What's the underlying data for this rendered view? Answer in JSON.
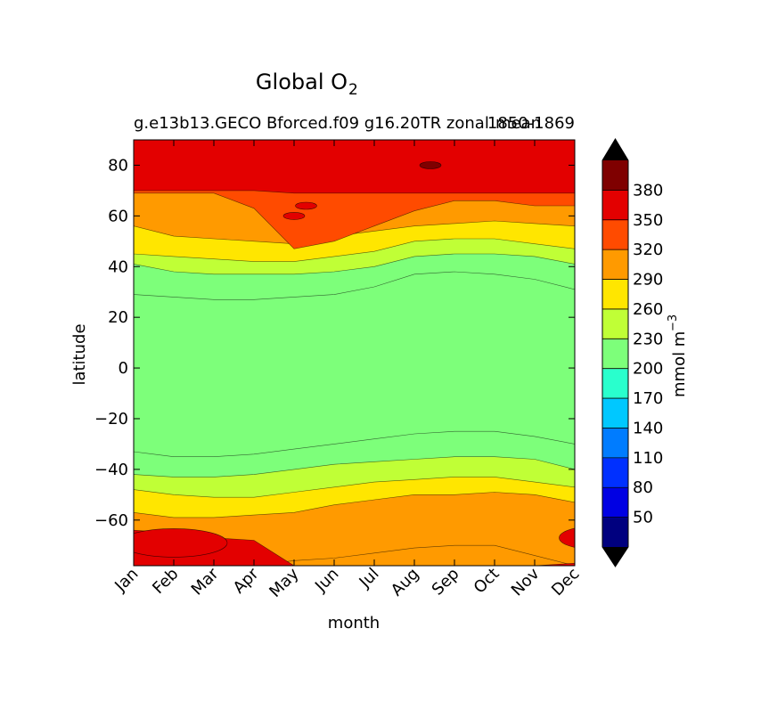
{
  "chart_data": {
    "type": "heatmap",
    "subtype": "filled-contour",
    "title": "Global O",
    "title_subscript": "2",
    "subtitle_left": "g.e13b13.GECO Bforced.f09 g16.20TR zonal",
    "subtitle_right": "1850-1869",
    "subtitle_overlap_text": "mean",
    "xlabel": "month",
    "ylabel": "latitude",
    "x_categories": [
      "Jan",
      "Feb",
      "Mar",
      "Apr",
      "May",
      "Jun",
      "Jul",
      "Aug",
      "Sep",
      "Oct",
      "Nov",
      "Dec"
    ],
    "y_ticks": [
      80,
      60,
      40,
      20,
      0,
      -20,
      -40,
      -60
    ],
    "ylim": [
      -78,
      90
    ],
    "colorbar": {
      "label": "mmol m",
      "label_superscript": "−3",
      "levels": [
        20,
        50,
        80,
        110,
        140,
        170,
        200,
        230,
        260,
        290,
        320,
        350,
        380,
        410
      ],
      "tick_labels": [
        "50",
        "80",
        "110",
        "140",
        "170",
        "200",
        "230",
        "260",
        "290",
        "320",
        "350",
        "380"
      ],
      "colors": [
        "#00007f",
        "#0000e3",
        "#0030ff",
        "#007cff",
        "#00c8ff",
        "#29ffcd",
        "#7dff7a",
        "#c0ff36",
        "#ffe600",
        "#ff9a00",
        "#ff4b00",
        "#e30000",
        "#7f0000"
      ],
      "extend": "both",
      "extend_low_color": "#000000",
      "extend_high_color": "#000000"
    },
    "contour_boundaries": [
      {
        "value": 200,
        "south": [
          -33,
          -35,
          -35,
          -34,
          -32,
          -30,
          -28,
          -26,
          -25,
          -25,
          -27,
          -30
        ],
        "north": [
          29,
          28,
          27,
          27,
          28,
          29,
          32,
          37,
          38,
          37,
          35,
          31
        ]
      },
      {
        "value": 230,
        "south": [
          -42,
          -43,
          -43,
          -42,
          -40,
          -38,
          -37,
          -36,
          -35,
          -35,
          -36,
          -40
        ],
        "north": [
          41,
          38,
          37,
          37,
          37,
          38,
          40,
          44,
          45,
          45,
          44,
          41
        ]
      },
      {
        "value": 260,
        "south": [
          -48,
          -50,
          -51,
          -51,
          -49,
          -47,
          -45,
          -44,
          -43,
          -43,
          -45,
          -47
        ],
        "north": [
          45,
          44,
          43,
          42,
          42,
          44,
          46,
          50,
          51,
          51,
          49,
          47
        ]
      },
      {
        "value": 290,
        "south": [
          -57,
          -59,
          -59,
          -58,
          -57,
          -54,
          -52,
          -50,
          -50,
          -49,
          -50,
          -53
        ],
        "north": [
          56,
          52,
          51,
          50,
          49,
          52,
          54,
          56,
          57,
          58,
          57,
          56
        ]
      },
      {
        "value": 320,
        "north": [
          69,
          69,
          69,
          63,
          47,
          50,
          56,
          62,
          66,
          66,
          64,
          64
        ]
      },
      {
        "value": 350,
        "north": [
          70,
          70,
          70,
          70,
          69,
          69,
          69,
          69,
          69,
          69,
          69,
          69
        ]
      }
    ],
    "local_features": [
      {
        "value": 380,
        "month": 7.4,
        "lat": 80
      },
      {
        "value": 350,
        "month": 4.3,
        "lat": 64
      },
      {
        "value": 350,
        "month": 4.0,
        "lat": 60
      },
      {
        "value": 350,
        "month": 1.0,
        "lat": -69
      },
      {
        "value": 350,
        "month": 11.5,
        "lat": -67
      }
    ]
  }
}
